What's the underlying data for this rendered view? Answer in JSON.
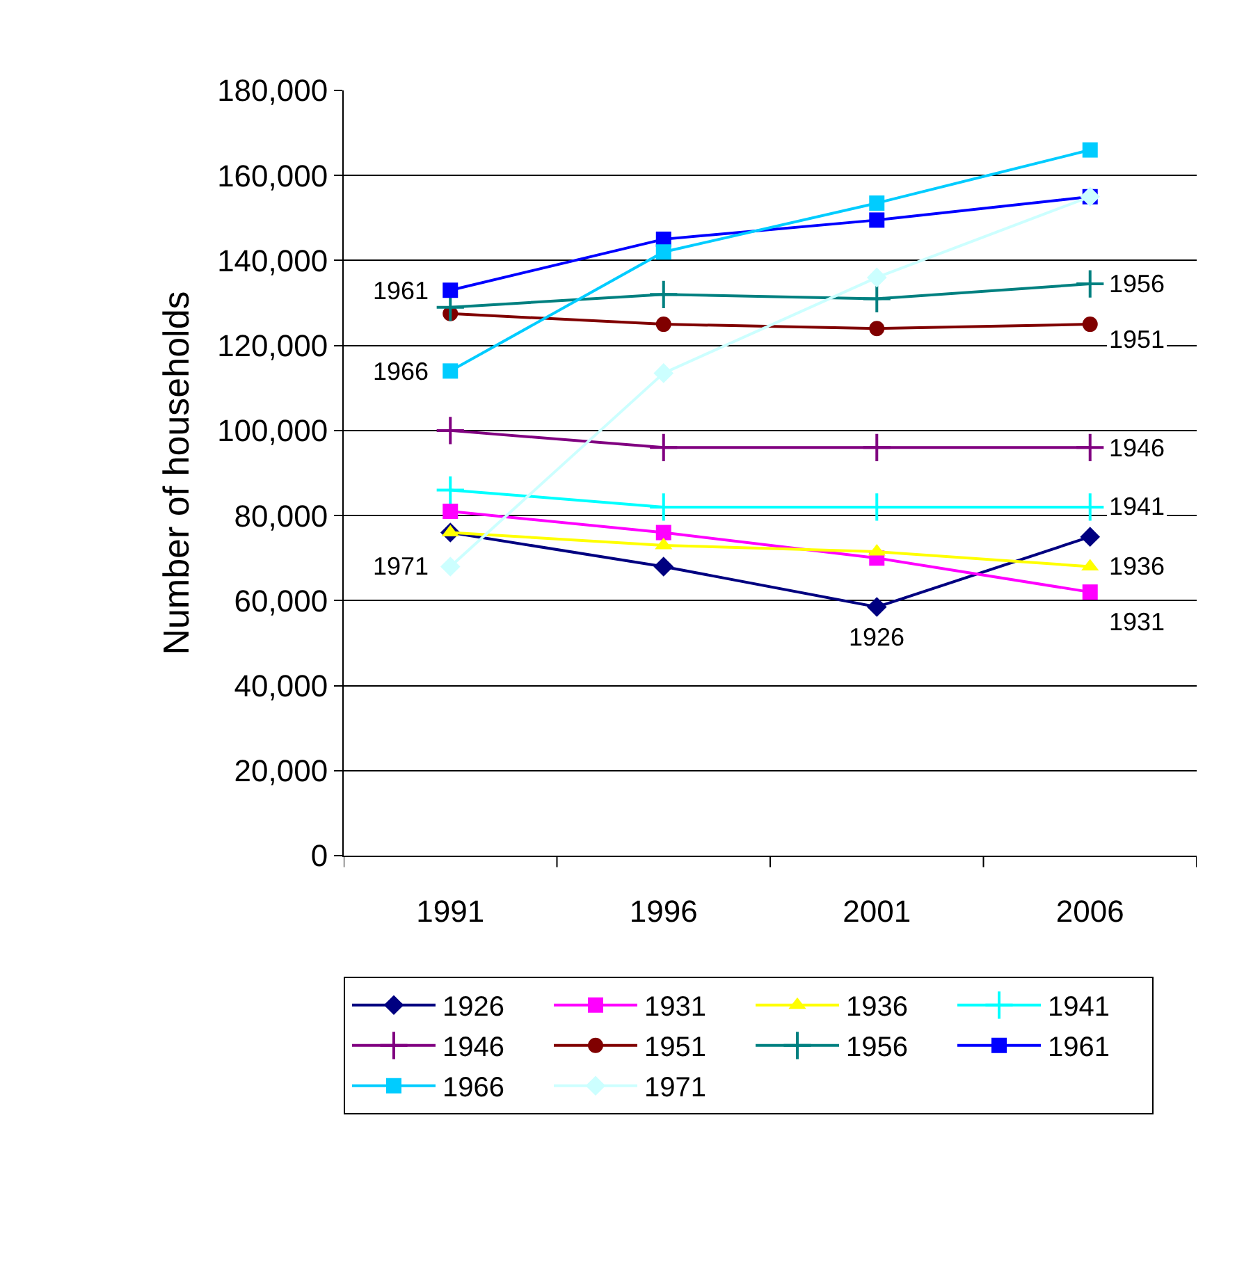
{
  "chart_data": {
    "type": "line",
    "ylabel": "Number of households",
    "categories": [
      "1991",
      "1996",
      "2001",
      "2006"
    ],
    "ylim": [
      0,
      180000
    ],
    "yticks": [
      {
        "value": 0,
        "label": "0"
      },
      {
        "value": 20000,
        "label": "20,000"
      },
      {
        "value": 40000,
        "label": "40,000"
      },
      {
        "value": 60000,
        "label": "60,000"
      },
      {
        "value": 80000,
        "label": "80,000"
      },
      {
        "value": 100000,
        "label": "100,000"
      },
      {
        "value": 120000,
        "label": "120,000"
      },
      {
        "value": 140000,
        "label": "140,000"
      },
      {
        "value": 160000,
        "label": "160,000"
      },
      {
        "value": 180000,
        "label": "180,000"
      }
    ],
    "grid": "y",
    "legend": "bottom",
    "line_style": "solid",
    "series": [
      {
        "name": "1926",
        "color": "#000080",
        "marker": "diamond",
        "values": [
          76000,
          68000,
          58500,
          75000
        ]
      },
      {
        "name": "1931",
        "color": "#ff00ff",
        "marker": "square",
        "values": [
          81000,
          76000,
          70000,
          62000
        ]
      },
      {
        "name": "1936",
        "color": "#ffff00",
        "marker": "triangle",
        "values": [
          76000,
          73000,
          71500,
          68000
        ]
      },
      {
        "name": "1941",
        "color": "#00ffff",
        "marker": "cross",
        "values": [
          86000,
          82000,
          82000,
          82000
        ]
      },
      {
        "name": "1946",
        "color": "#800080",
        "marker": "cross",
        "values": [
          100000,
          96000,
          96000,
          96000
        ]
      },
      {
        "name": "1951",
        "color": "#800000",
        "marker": "circle",
        "values": [
          127500,
          125000,
          124000,
          125000
        ]
      },
      {
        "name": "1956",
        "color": "#008080",
        "marker": "cross",
        "values": [
          129000,
          132000,
          131000,
          134500
        ]
      },
      {
        "name": "1961",
        "color": "#0000ff",
        "marker": "square",
        "values": [
          133000,
          145000,
          149500,
          155000
        ]
      },
      {
        "name": "1966",
        "color": "#00ccff",
        "marker": "square",
        "values": [
          114000,
          142000,
          153500,
          166000
        ]
      },
      {
        "name": "1971",
        "color": "#ccffff",
        "marker": "diamond",
        "values": [
          68000,
          113500,
          136000,
          155000
        ]
      }
    ],
    "annotations": [
      {
        "text": "1961",
        "x": "1991",
        "y": 133000
      },
      {
        "text": "1966",
        "x": "1991",
        "y": 114000
      },
      {
        "text": "1971",
        "x": "1991",
        "y": 68000
      },
      {
        "text": "1956",
        "x": "2006",
        "y": 134500
      },
      {
        "text": "1951",
        "x": "2006",
        "y": 125000
      },
      {
        "text": "1946",
        "x": "2006",
        "y": 96000
      },
      {
        "text": "1941",
        "x": "2006",
        "y": 82000
      },
      {
        "text": "1936",
        "x": "2006",
        "y": 68000
      },
      {
        "text": "1931",
        "x": "2006",
        "y": 62000
      },
      {
        "text": "1926",
        "x": "2001",
        "y": 58500
      }
    ]
  }
}
